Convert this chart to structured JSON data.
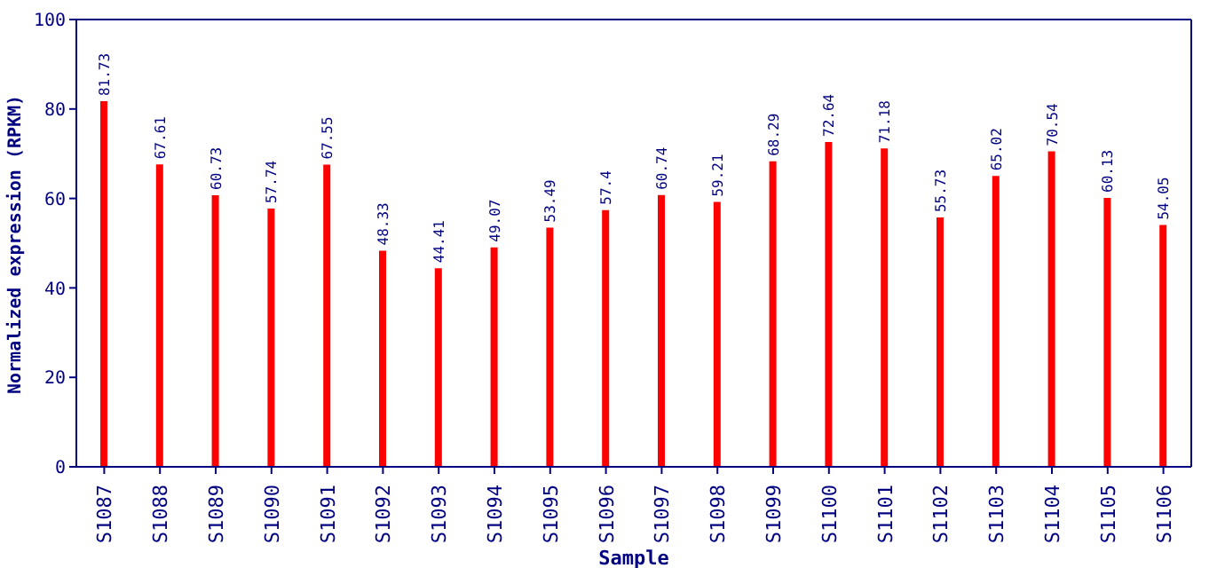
{
  "chart_data": {
    "type": "bar",
    "xlabel": "Sample",
    "ylabel": "Normalized expression (RPKM)",
    "categories": [
      "S1087",
      "S1088",
      "S1089",
      "S1090",
      "S1091",
      "S1092",
      "S1093",
      "S1094",
      "S1095",
      "S1096",
      "S1097",
      "S1098",
      "S1099",
      "S1100",
      "S1101",
      "S1102",
      "S1103",
      "S1104",
      "S1105",
      "S1106"
    ],
    "values": [
      81.73,
      67.61,
      60.73,
      57.74,
      67.55,
      48.33,
      44.41,
      49.07,
      53.49,
      57.4,
      60.74,
      59.21,
      68.29,
      72.64,
      71.18,
      55.73,
      65.02,
      70.54,
      60.13,
      54.05
    ],
    "color": "#ff0000",
    "ylim": [
      0,
      100
    ],
    "yticks": [
      0,
      20,
      40,
      60,
      80,
      100
    ],
    "data_labels": true,
    "grid": false
  }
}
